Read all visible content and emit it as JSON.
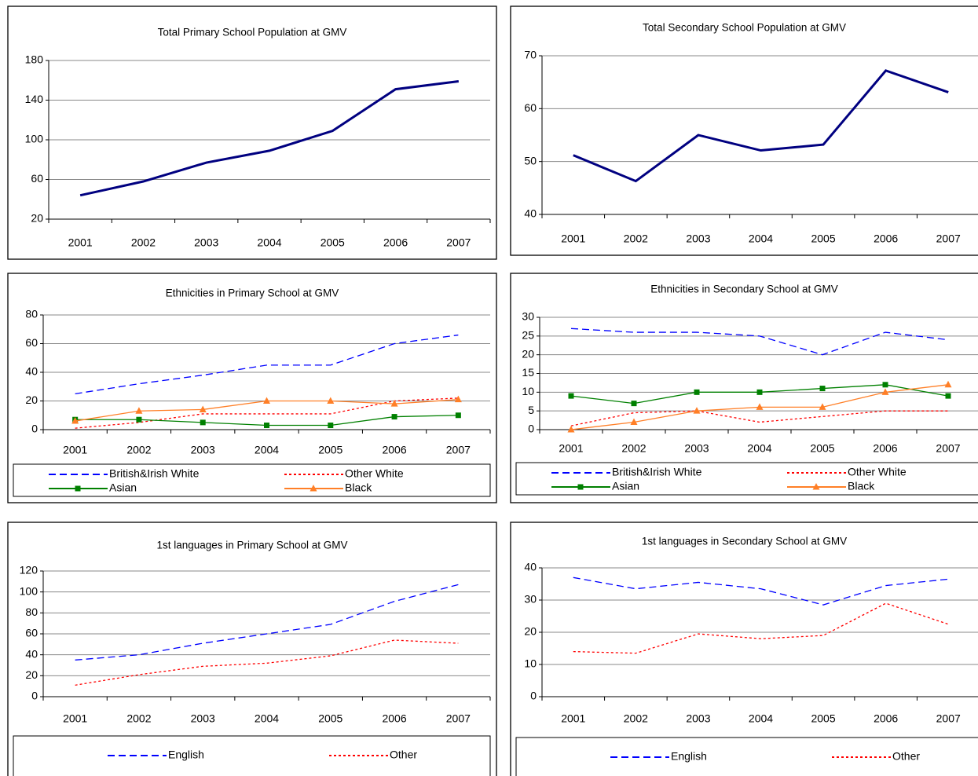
{
  "chart_data": [
    {
      "type": "line",
      "title": "Total Primary School Population at GMV",
      "categories": [
        "2001",
        "2002",
        "2003",
        "2004",
        "2005",
        "2006",
        "2007"
      ],
      "values": [
        44,
        58,
        77,
        89,
        109,
        151,
        159
      ],
      "color": "#000080",
      "style": "solid",
      "ylim": [
        20,
        180
      ],
      "yticks": [
        20,
        60,
        100,
        140,
        180
      ],
      "grid": true
    },
    {
      "type": "line",
      "title": "Total Secondary School Population at GMV",
      "categories": [
        "2001",
        "2002",
        "2003",
        "2004",
        "2005",
        "2006",
        "2007"
      ],
      "values": [
        51.2,
        46.3,
        55,
        52.1,
        53.2,
        67.2,
        63.1
      ],
      "color": "#000080",
      "style": "solid",
      "ylim": [
        40,
        70
      ],
      "yticks": [
        40,
        50,
        60,
        70
      ],
      "grid": true
    },
    {
      "type": "line",
      "title": "Ethnicities in Primary School at GMV",
      "categories": [
        "2001",
        "2002",
        "2003",
        "2004",
        "2005",
        "2006",
        "2007"
      ],
      "series": [
        {
          "name": "British&Irish White",
          "color": "#0000ff",
          "style": "dashed",
          "values": [
            25,
            32,
            38,
            45,
            45,
            60,
            66
          ]
        },
        {
          "name": "Other White",
          "color": "#ff0000",
          "style": "dotted",
          "values": [
            1,
            5,
            11,
            11,
            11,
            20,
            22
          ]
        },
        {
          "name": "Asian",
          "color": "#008000",
          "style": "solid",
          "marker": "square",
          "values": [
            7,
            7,
            5,
            3,
            3,
            9,
            10
          ]
        },
        {
          "name": "Black",
          "color": "#ff7f27",
          "style": "solid",
          "marker": "triangle",
          "values": [
            6,
            13,
            14,
            20,
            20,
            18,
            21
          ]
        }
      ],
      "ylim": [
        0,
        80
      ],
      "yticks": [
        0,
        20,
        40,
        60,
        80
      ],
      "grid": true,
      "legend": "bottom"
    },
    {
      "type": "line",
      "title": "Ethnicities in Secondary School at GMV",
      "categories": [
        "2001",
        "2002",
        "2003",
        "2004",
        "2005",
        "2006",
        "2007"
      ],
      "series": [
        {
          "name": "British&Irish White",
          "color": "#0000ff",
          "style": "dashed",
          "values": [
            27,
            26,
            26,
            25,
            20,
            26,
            24
          ]
        },
        {
          "name": "Other White",
          "color": "#ff0000",
          "style": "dotted",
          "values": [
            1,
            4.5,
            5,
            2,
            3.5,
            5,
            5
          ]
        },
        {
          "name": "Asian",
          "color": "#008000",
          "style": "solid",
          "marker": "square",
          "values": [
            9,
            7,
            10,
            10,
            11,
            12,
            9
          ]
        },
        {
          "name": "Black",
          "color": "#ff7f27",
          "style": "solid",
          "marker": "triangle",
          "values": [
            0,
            2,
            5,
            6,
            6,
            10,
            12
          ]
        }
      ],
      "ylim": [
        0,
        30
      ],
      "yticks": [
        0,
        5,
        10,
        15,
        20,
        25,
        30
      ],
      "grid": true,
      "legend": "bottom"
    },
    {
      "type": "line",
      "title": "1st languages in Primary School at GMV",
      "categories": [
        "2001",
        "2002",
        "2003",
        "2004",
        "2005",
        "2006",
        "2007"
      ],
      "series": [
        {
          "name": "English",
          "color": "#0000ff",
          "style": "dashed",
          "values": [
            35,
            40,
            51,
            60,
            69,
            91,
            107
          ]
        },
        {
          "name": "Other",
          "color": "#ff0000",
          "style": "dotted",
          "values": [
            11,
            21,
            29,
            32,
            39,
            54,
            51
          ]
        }
      ],
      "ylim": [
        0,
        120
      ],
      "yticks": [
        0,
        20,
        40,
        60,
        80,
        100,
        120
      ],
      "grid": true,
      "legend": "bottom"
    },
    {
      "type": "line",
      "title": "1st languages in Secondary School at GMV",
      "categories": [
        "2001",
        "2002",
        "2003",
        "2004",
        "2005",
        "2006",
        "2007"
      ],
      "series": [
        {
          "name": "English",
          "color": "#0000ff",
          "style": "dashed",
          "values": [
            37,
            33.5,
            35.5,
            33.5,
            28.5,
            34.5,
            36.5
          ]
        },
        {
          "name": "Other",
          "color": "#ff0000",
          "style": "dotted",
          "values": [
            14,
            13.5,
            19.5,
            18,
            19,
            29,
            22.5
          ]
        }
      ],
      "ylim": [
        0,
        40
      ],
      "yticks": [
        0,
        10,
        20,
        30,
        40
      ],
      "grid": true,
      "legend": "bottom"
    }
  ]
}
